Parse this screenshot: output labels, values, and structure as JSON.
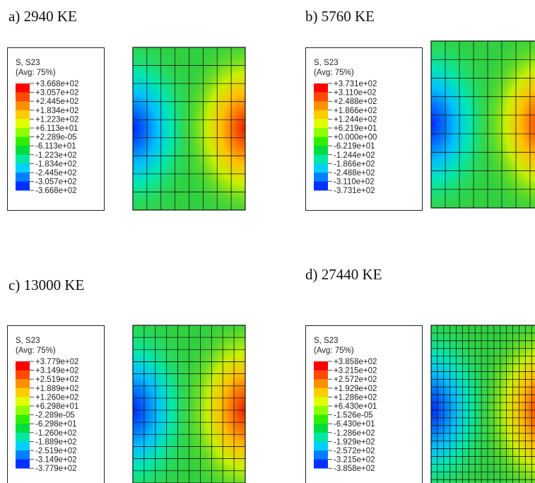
{
  "panels": [
    {
      "title": "a) 2940 KE",
      "legend_title": "S, S23",
      "legend_subtitle": "(Avg: 75%)",
      "labels": [
        "+3.668e+02",
        "+3.057e+02",
        "+2.445e+02",
        "+1.834e+02",
        "+1.223e+02",
        "+6.113e+01",
        "+2.289e-05",
        "-6.113e+01",
        "-1.223e+02",
        "-1.834e+02",
        "-2.445e+02",
        "-3.057e+02",
        "-3.668e+02"
      ]
    },
    {
      "title": "b) 5760 KE",
      "legend_title": "S, S23",
      "legend_subtitle": "(Avg: 75%)",
      "labels": [
        "+3.731e+02",
        "+3.110e+02",
        "+2.488e+02",
        "+1.866e+02",
        "+1.244e+02",
        "+6.219e+01",
        "+0.000e+00",
        "-6.219e+01",
        "-1.244e+02",
        "-1.866e+02",
        "-2.488e+02",
        "-3.110e+02",
        "-3.731e+02"
      ]
    },
    {
      "title": "c) 13000 KE",
      "legend_title": "S, S23",
      "legend_subtitle": "(Avg: 75%)",
      "labels": [
        "+3.779e+02",
        "+3.149e+02",
        "+2.519e+02",
        "+1.889e+02",
        "+1.260e+02",
        "+6.298e+01",
        "-2.289e-05",
        "-6.298e+01",
        "-1.260e+02",
        "-1.889e+02",
        "-2.519e+02",
        "-3.149e+02",
        "-3.779e+02"
      ]
    },
    {
      "title": "d) 27440 KE",
      "legend_title": "S, S23",
      "legend_subtitle": "(Avg: 75%)",
      "labels": [
        "+3.858e+02",
        "+3.215e+02",
        "+2.572e+02",
        "+1.929e+02",
        "+1.286e+02",
        "+6.430e+01",
        "-1.526e-05",
        "-6.430e+01",
        "-1.286e+02",
        "-1.929e+02",
        "-2.572e+02",
        "-3.215e+02",
        "-3.858e+02"
      ]
    }
  ]
}
